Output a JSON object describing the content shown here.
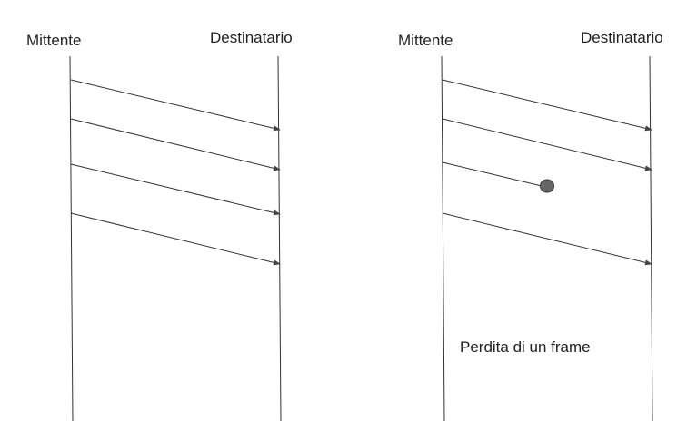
{
  "left_diagram": {
    "sender_label": "Mittente",
    "receiver_label": "Destinatario",
    "frames": [
      {
        "delivered": true
      },
      {
        "delivered": true
      },
      {
        "delivered": true
      },
      {
        "delivered": true
      }
    ]
  },
  "right_diagram": {
    "sender_label": "Mittente",
    "receiver_label": "Destinatario",
    "frames": [
      {
        "delivered": true
      },
      {
        "delivered": true
      },
      {
        "delivered": false
      },
      {
        "delivered": true
      }
    ],
    "caption": "Perdita di un frame"
  },
  "colors": {
    "line": "#333333",
    "arrow": "#444444",
    "lost_marker": "#666666",
    "text": "#222222"
  }
}
